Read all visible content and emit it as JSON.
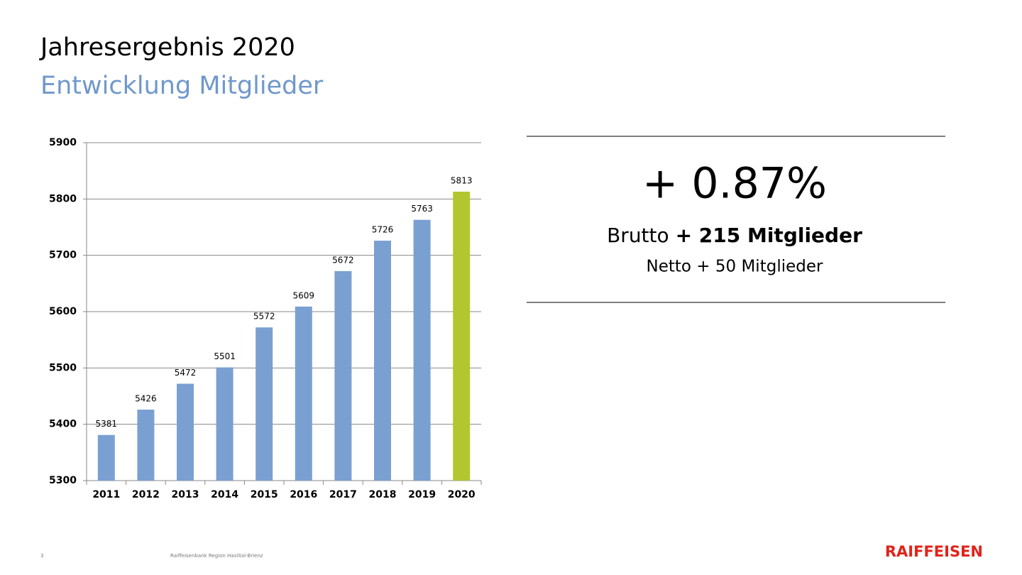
{
  "header": {
    "title": "Jahresergebnis 2020",
    "subtitle": "Entwicklung Mitglieder"
  },
  "chart_data": {
    "type": "bar",
    "categories": [
      "2011",
      "2012",
      "2013",
      "2014",
      "2015",
      "2016",
      "2017",
      "2018",
      "2019",
      "2020"
    ],
    "values": [
      5381,
      5426,
      5472,
      5501,
      5572,
      5609,
      5672,
      5726,
      5763,
      5813
    ],
    "colors": [
      "#7aa0d2",
      "#7aa0d2",
      "#7aa0d2",
      "#7aa0d2",
      "#7aa0d2",
      "#7aa0d2",
      "#7aa0d2",
      "#7aa0d2",
      "#7aa0d2",
      "#b3c630"
    ],
    "ylim": [
      5300,
      5900
    ],
    "yticks": [
      5300,
      5400,
      5500,
      5600,
      5700,
      5800,
      5900
    ],
    "grid": true
  },
  "stats": {
    "change": "+ 0.87%",
    "brutto_label": "Brutto",
    "brutto_value": "+ 215 Mitglieder",
    "netto": "Netto + 50 Mitglieder"
  },
  "footer": {
    "page": "3",
    "bank": "Raiffeisenbank  Region  Haslital-Brienz",
    "logo": "RAIFFEISEN"
  }
}
